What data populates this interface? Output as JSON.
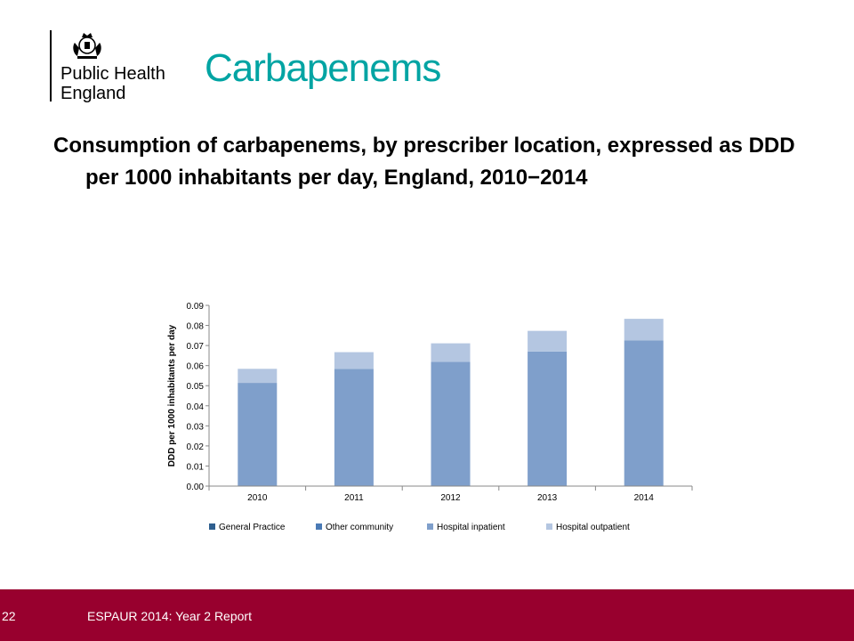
{
  "logo": {
    "line1": "Public Health",
    "line2": "England"
  },
  "title": "Carbapenems",
  "subtitle": "Consumption of carbapenems, by prescriber location, expressed as DDD per 1000 inhabitants per day, England, 2010−2014",
  "chart_data": {
    "type": "bar",
    "stacked": true,
    "ylabel": "DDD per 1000 inhabitants per day",
    "ylim": [
      0,
      0.09
    ],
    "yticks": [
      "0.00",
      "0.01",
      "0.02",
      "0.03",
      "0.04",
      "0.05",
      "0.06",
      "0.07",
      "0.08",
      "0.09"
    ],
    "categories": [
      "2010",
      "2011",
      "2012",
      "2013",
      "2014"
    ],
    "series": [
      {
        "name": "General Practice",
        "color": "#2e5f8f",
        "values": [
          0.0001,
          0.0001,
          0.0001,
          0.0001,
          0.0001
        ]
      },
      {
        "name": "Other community",
        "color": "#4a7ab5",
        "values": [
          0.0001,
          0.0001,
          0.0001,
          0.0001,
          0.0001
        ]
      },
      {
        "name": "Hospital inpatient",
        "color": "#7f9fcb",
        "values": [
          0.0512,
          0.0582,
          0.0617,
          0.0668,
          0.0723
        ]
      },
      {
        "name": "Hospital outpatient",
        "color": "#b4c6e1",
        "values": [
          0.007,
          0.0083,
          0.0092,
          0.0103,
          0.0108
        ]
      }
    ],
    "legend": "bottom",
    "grid": false
  },
  "footer": {
    "page": "22",
    "text": "ESPAUR 2014: Year 2 Report"
  }
}
